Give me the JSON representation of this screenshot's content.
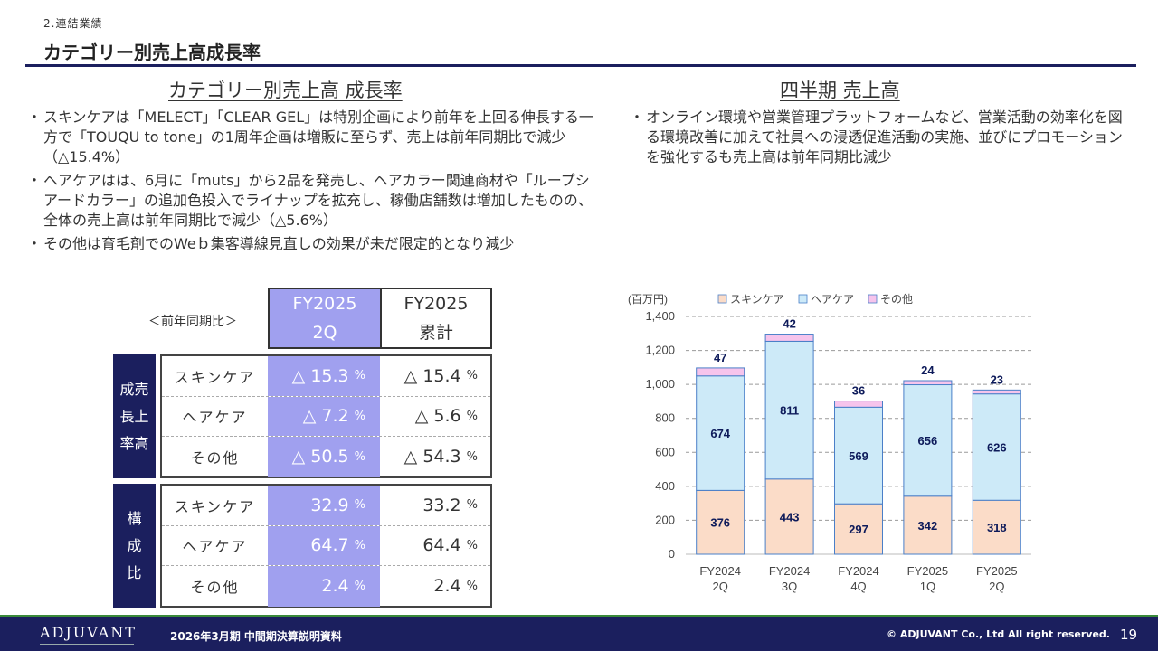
{
  "header": {
    "section": "2.連結業績",
    "title": "カテゴリー別売上高成長率"
  },
  "left": {
    "heading": "カテゴリー別売上高 成長率",
    "bullets": [
      "スキンケアは「MELECT」「CLEAR GEL」は特別企画により前年を上回る伸長する一方で「TOUQU to tone」の1周年企画は増販に至らず、売上は前年同期比で減少（△15.4%）",
      "ヘアケアはは、6月に「muts」から2品を発売し、ヘアカラー関連商材や「ループシアードカラー」の追加色投入でライナップを拡充し、稼働店舗数は増加したものの、全体の売上高は前年同期比で減少（△5.6%）",
      "その他は育毛剤でのWeｂ集客導線見直しの効果が未だ限定的となり減少"
    ]
  },
  "right": {
    "heading": "四半期 売上高",
    "bullets": [
      "オンライン環境や営業管理プラットフォームなど、営業活動の効率化を図る環境改善に加えて社員への浸透促進活動の実施、並びにプロモーションを強化するも売上高は前年同期比減少"
    ]
  },
  "table": {
    "compare_label": "＜前年同期比＞",
    "col_q_line1": "FY2025",
    "col_q_line2": "2Q",
    "col_c_line1": "FY2025",
    "col_c_line2": "累計",
    "growth_label": "成売長上率高",
    "growth_label_lines": [
      "成売",
      "長上",
      "率高"
    ],
    "composition_label_lines": [
      "構",
      "成",
      "比"
    ],
    "pct": "%",
    "growth_rows": [
      {
        "label": "スキンケア",
        "q": "△ 15.3",
        "c": "△ 15.4"
      },
      {
        "label": "ヘアケア",
        "q": "△ 7.2",
        "c": "△ 5.6"
      },
      {
        "label": "その他",
        "q": "△ 50.5",
        "c": "△ 54.3"
      }
    ],
    "composition_rows": [
      {
        "label": "スキンケア",
        "q": "32.9",
        "c": "33.2"
      },
      {
        "label": "ヘアケア",
        "q": "64.7",
        "c": "64.4"
      },
      {
        "label": "その他",
        "q": "2.4",
        "c": "2.4"
      }
    ]
  },
  "chart_data": {
    "type": "bar",
    "stacked": true,
    "unit_label": "(百万円)",
    "categories": [
      "FY2024 2Q",
      "FY2024 3Q",
      "FY2024 4Q",
      "FY2025 1Q",
      "FY2025 2Q"
    ],
    "category_lines": [
      [
        "FY2024",
        "2Q"
      ],
      [
        "FY2024",
        "3Q"
      ],
      [
        "FY2024",
        "4Q"
      ],
      [
        "FY2025",
        "1Q"
      ],
      [
        "FY2025",
        "2Q"
      ]
    ],
    "series": [
      {
        "name": "スキンケア",
        "values": [
          376,
          443,
          297,
          342,
          318
        ],
        "color": "#fbdcc8"
      },
      {
        "name": "ヘアケア",
        "values": [
          674,
          811,
          569,
          656,
          626
        ],
        "color": "#cdeaf8"
      },
      {
        "name": "その他",
        "values": [
          47,
          42,
          36,
          24,
          23
        ],
        "color": "#f6c4ec"
      }
    ],
    "ylim": [
      0,
      1400
    ],
    "yticks": [
      "0",
      "200",
      "400",
      "600",
      "800",
      "1,000",
      "1,200",
      "1,400"
    ],
    "grid": true,
    "legend_position": "top",
    "bar_edge_color": "#4a7fc8",
    "label_color": "#0d1a5a"
  },
  "footer": {
    "logo": "ADJUVANT",
    "doc_title": "2026年3月期 中間期決算説明資料",
    "copyright": "© ADJUVANT Co., Ltd All right reserved.",
    "page": "19"
  },
  "colors": {
    "navy": "#1b1f5e",
    "highlight": "#a0a0ef"
  }
}
